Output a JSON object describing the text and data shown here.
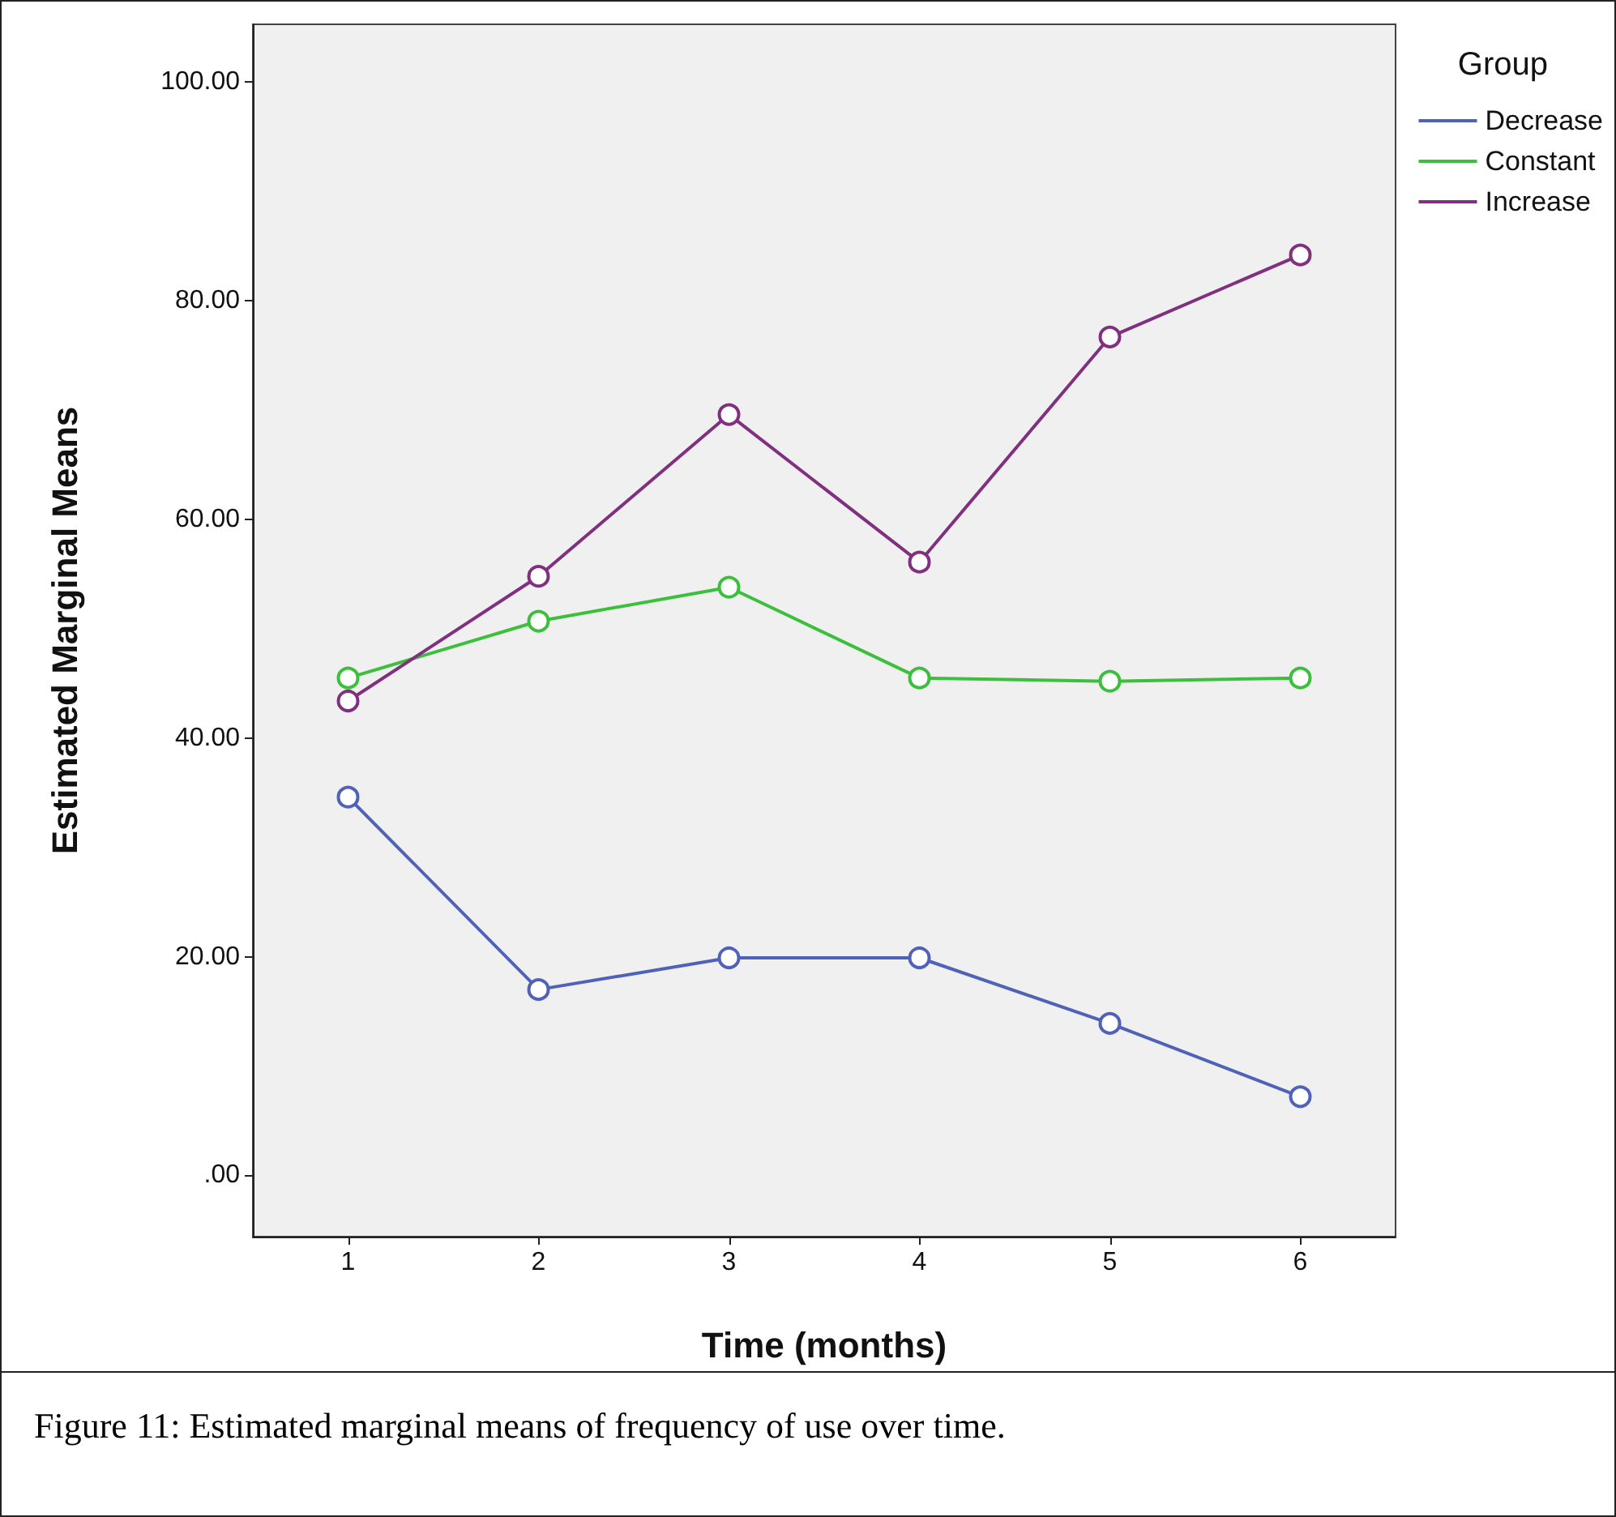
{
  "chart_data": {
    "type": "line",
    "xlabel": "Time (months)",
    "ylabel": "Estimated Marginal Means",
    "legend_title": "Group",
    "categories": [
      "1",
      "2",
      "3",
      "4",
      "5",
      "6"
    ],
    "series": [
      {
        "name": "Decrease",
        "color": "#4f62b8",
        "values": [
          34.6,
          17.0,
          19.9,
          19.9,
          13.9,
          7.2
        ]
      },
      {
        "name": "Constant",
        "color": "#3cbf3c",
        "values": [
          45.5,
          50.7,
          53.8,
          45.5,
          45.2,
          45.5
        ]
      },
      {
        "name": "Increase",
        "color": "#80307f",
        "values": [
          43.4,
          54.8,
          69.6,
          56.1,
          76.7,
          84.2
        ]
      }
    ],
    "ylim": [
      -5.6,
      105.3
    ],
    "yticks": [
      {
        "value": 0,
        "label": ".00"
      },
      {
        "value": 20,
        "label": "20.00"
      },
      {
        "value": 40,
        "label": "40.00"
      },
      {
        "value": 60,
        "label": "60.00"
      },
      {
        "value": 80,
        "label": "80.00"
      },
      {
        "value": 100,
        "label": "100.00"
      }
    ],
    "grid": false,
    "legend": "top right",
    "marker": "circle",
    "line_style": "solid",
    "annotations": [
      "Figure 11: Estimated marginal means of frequency of use over time."
    ]
  }
}
